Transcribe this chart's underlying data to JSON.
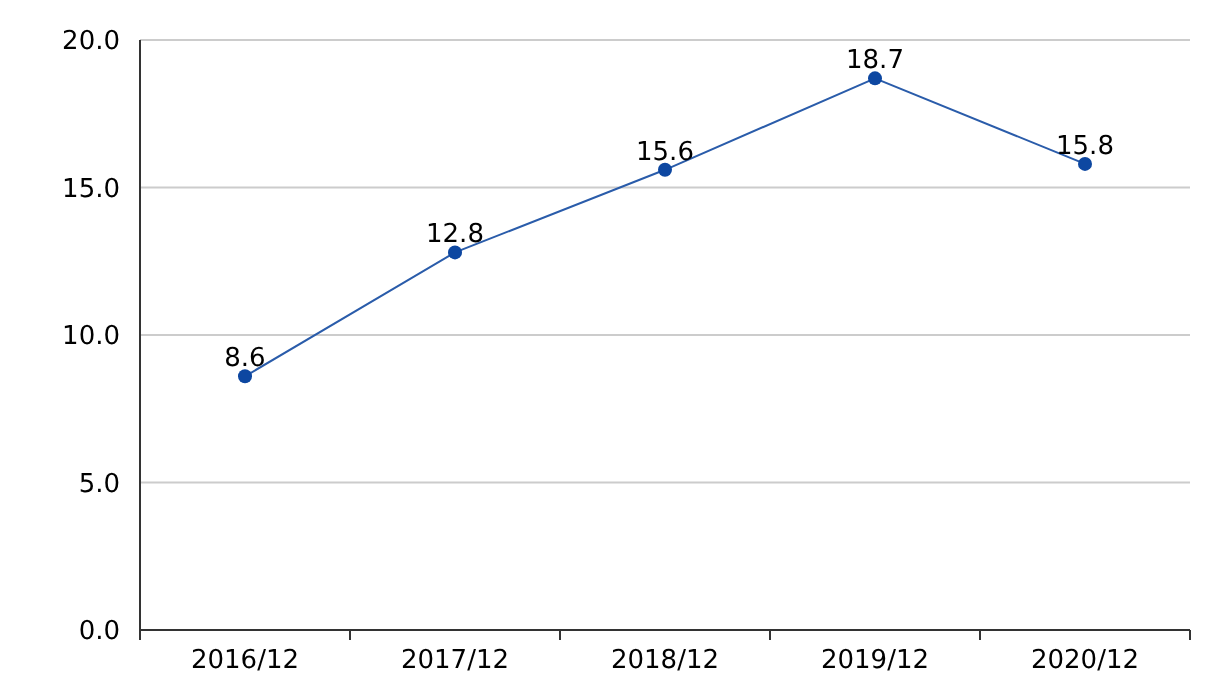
{
  "chart_data": {
    "type": "line",
    "categories": [
      "2016/12",
      "2017/12",
      "2018/12",
      "2019/12",
      "2020/12"
    ],
    "series": [
      {
        "color": "#2a5caa",
        "values": [
          8.6,
          12.8,
          15.6,
          18.7,
          15.8
        ]
      }
    ],
    "ylim": [
      0,
      20
    ],
    "yticks": [
      {
        "value": 0,
        "label": "0.0"
      },
      {
        "value": 5,
        "label": "5.0"
      },
      {
        "value": 10,
        "label": "10.0"
      },
      {
        "value": 15,
        "label": "15.0"
      },
      {
        "value": 20,
        "label": "20.0"
      }
    ],
    "grid": "y",
    "marker": "circle",
    "data_labels": true
  }
}
